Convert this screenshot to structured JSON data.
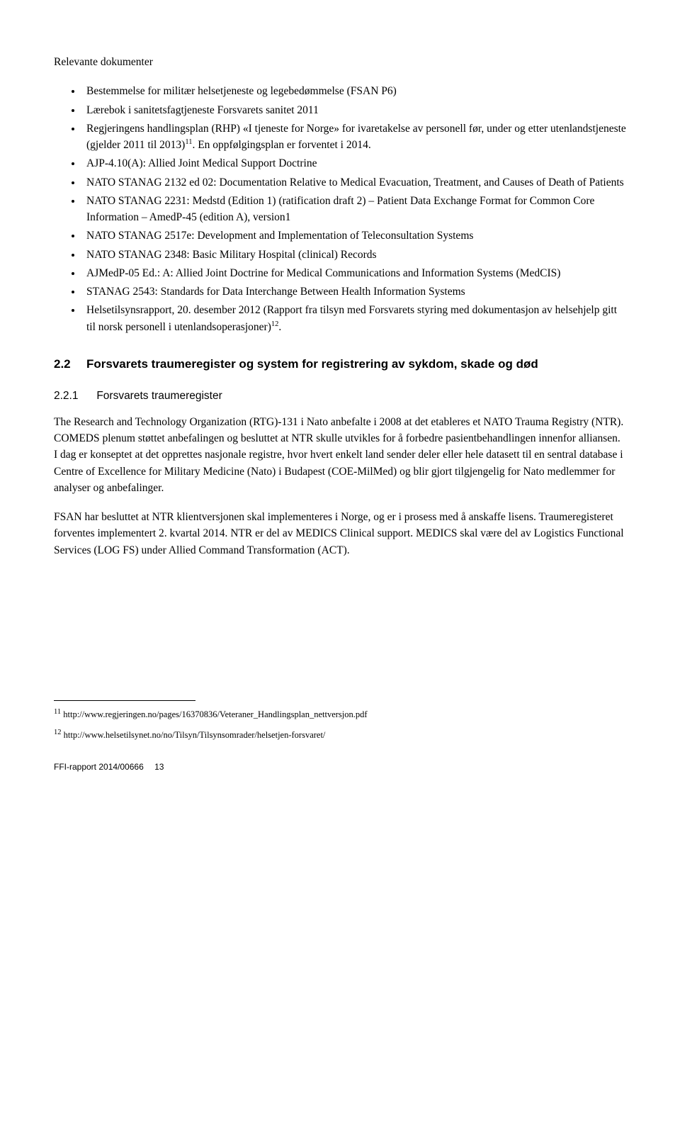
{
  "relevanteHeading": "Relevante dokumenter",
  "bullets": [
    "Bestemmelse for militær helsetjeneste og legebedømmelse (FSAN P6)",
    "Lærebok i sanitetsfagtjeneste Forsvarets sanitet 2011",
    "Regjeringens handlingsplan (RHP) «I tjeneste for Norge» for ivaretakelse av personell før, under og etter utenlandstjeneste (gjelder 2011 til 2013)11. En oppfølgingsplan er forventet i 2014.",
    "AJP-4.10(A): Allied Joint Medical Support Doctrine",
    "NATO STANAG 2132 ed 02: Documentation Relative to Medical Evacuation, Treatment, and Causes of Death of Patients",
    "NATO STANAG 2231: Medstd (Edition 1) (ratification draft 2) – Patient Data Exchange Format for Common Core Information – AmedP-45 (edition A), version1",
    "NATO STANAG 2517e: Development and Implementation of Teleconsultation Systems",
    "NATO STANAG 2348: Basic Military Hospital (clinical) Records",
    "AJMedP-05 Ed.: A: Allied Joint Doctrine for Medical Communications and Information Systems (MedCIS)",
    "STANAG 2543: Standards for Data Interchange Between Health Information Systems",
    "Helsetilsynsrapport, 20. desember 2012 (Rapport fra tilsyn med Forsvarets styring med dokumentasjon av helsehjelp gitt til norsk personell i utenlandsoperasjoner)12."
  ],
  "bullet_sup_map": {
    "2": "11",
    "10": "12"
  },
  "section": {
    "num": "2.2",
    "title": "Forsvarets traumeregister og system for registrering av sykdom, skade og død"
  },
  "subsection": {
    "num": "2.2.1",
    "title": "Forsvarets traumeregister"
  },
  "para1": "The Research and Technology Organization (RTG)-131 i Nato anbefalte i 2008 at det etableres et NATO Trauma Registry (NTR). COMEDS plenum støttet anbefalingen og besluttet at NTR skulle utvikles for å forbedre pasientbehandlingen innenfor alliansen. I dag er konseptet at det opprettes nasjonale registre, hvor hvert enkelt land sender deler eller hele datasett til en sentral database i Centre of Excellence for Military Medicine (Nato) i Budapest (COE-MilMed) og blir gjort tilgjengelig for Nato medlemmer for analyser og anbefalinger.",
  "para2": "FSAN har besluttet at NTR klientversjonen skal implementeres i Norge, og er i prosess med å anskaffe lisens. Traumeregisteret forventes implementert 2. kvartal 2014. NTR er del av MEDICS Clinical support. MEDICS skal være del av Logistics Functional Services (LOG FS) under Allied Command Transformation (ACT).",
  "footnotes": {
    "fn11": {
      "num": "11",
      "text": " http://www.regjeringen.no/pages/16370836/Veteraner_Handlingsplan_nettversjon.pdf"
    },
    "fn12": {
      "num": "12",
      "text": " http://www.helsetilsynet.no/no/Tilsyn/Tilsynsomrader/helsetjen-forsvaret/"
    }
  },
  "footer": {
    "report": "FFI-rapport 2014/00666",
    "page": "13"
  }
}
